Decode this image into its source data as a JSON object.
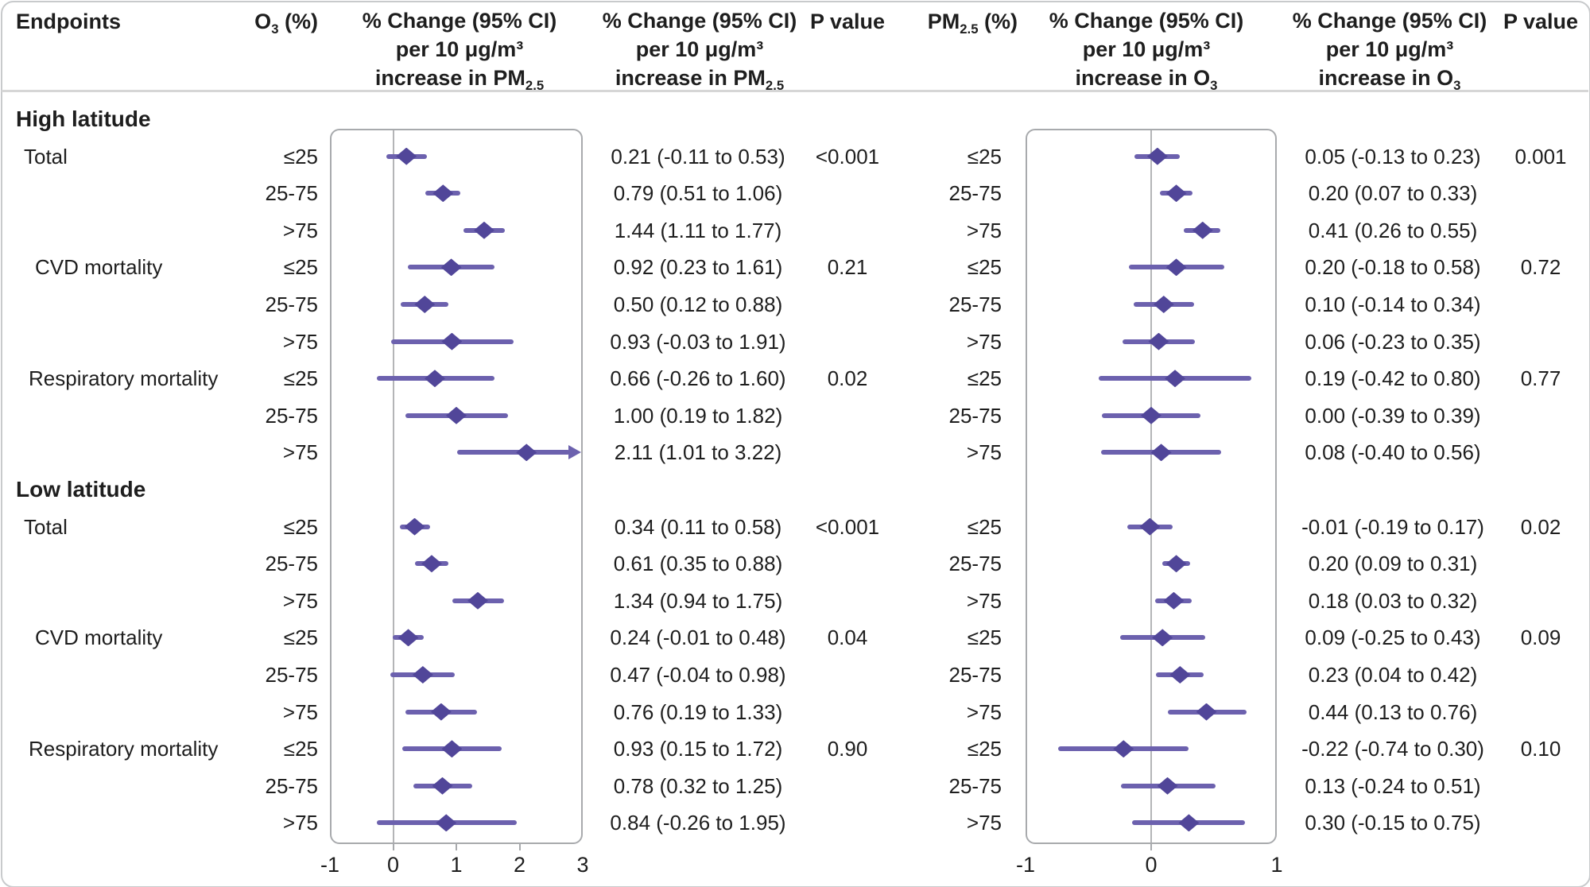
{
  "figure": {
    "header": {
      "endpoints": "Endpoints",
      "o3_pre": "O",
      "o3_sub": "3",
      "o3_post": " (%)",
      "pm_pre": "PM",
      "pm_sub": "2.5",
      "pm_post": " (%)",
      "p_value_left": "P value",
      "p_value_right": "P value",
      "change_line1": "% Change (95% CI)",
      "change_line2": "per 10 μg/m³",
      "inc_pm_pre": "increase in PM",
      "inc_pm_sub": "2.5",
      "inc_o3_pre": "increase in O",
      "inc_o3_sub": "3"
    }
  },
  "chart_data": {
    "type": "forest",
    "panels": [
      {
        "id": "pm25",
        "title": "% Change (95% CI) per 10 ug/m3 increase in PM2.5",
        "xlim": [
          -1,
          3
        ],
        "ticks": [
          -1,
          0,
          1,
          2,
          3
        ]
      },
      {
        "id": "o3",
        "title": "% Change (95% CI) per 10 ug/m3 increase in O3",
        "xlim": [
          -1,
          1
        ],
        "ticks": [
          -1,
          0,
          1
        ]
      }
    ],
    "colors": {
      "diamond": "#514699",
      "ci_line": "#6c61ae",
      "zero_line": "#b4b5b7"
    },
    "sections": [
      {
        "label": "High latitude",
        "rows": [
          {
            "endpoint": "Total",
            "stratum": "≤25",
            "pm25": {
              "est": 0.21,
              "lo": -0.11,
              "hi": 0.53,
              "text": "0.21 (-0.11 to 0.53)",
              "p": "<0.001"
            },
            "o3": {
              "est": 0.05,
              "lo": -0.13,
              "hi": 0.23,
              "text": "0.05 (-0.13 to 0.23)",
              "p": "0.001"
            }
          },
          {
            "endpoint": "",
            "stratum": "25-75",
            "pm25": {
              "est": 0.79,
              "lo": 0.51,
              "hi": 1.06,
              "text": "0.79 (0.51 to 1.06)",
              "p": ""
            },
            "o3": {
              "est": 0.2,
              "lo": 0.07,
              "hi": 0.33,
              "text": "0.20 (0.07 to 0.33)",
              "p": ""
            }
          },
          {
            "endpoint": "",
            "stratum": ">75",
            "pm25": {
              "est": 1.44,
              "lo": 1.11,
              "hi": 1.77,
              "text": "1.44 (1.11 to 1.77)",
              "p": ""
            },
            "o3": {
              "est": 0.41,
              "lo": 0.26,
              "hi": 0.55,
              "text": "0.41 (0.26 to 0.55)",
              "p": ""
            }
          },
          {
            "endpoint": "CVD mortality",
            "stratum": "≤25",
            "pm25": {
              "est": 0.92,
              "lo": 0.23,
              "hi": 1.61,
              "text": "0.92 (0.23 to 1.61)",
              "p": "0.21"
            },
            "o3": {
              "est": 0.2,
              "lo": -0.18,
              "hi": 0.58,
              "text": "0.20 (-0.18 to 0.58)",
              "p": "0.72"
            }
          },
          {
            "endpoint": "",
            "stratum": "25-75",
            "pm25": {
              "est": 0.5,
              "lo": 0.12,
              "hi": 0.88,
              "text": "0.50 (0.12 to 0.88)",
              "p": ""
            },
            "o3": {
              "est": 0.1,
              "lo": -0.14,
              "hi": 0.34,
              "text": "0.10 (-0.14 to 0.34)",
              "p": ""
            }
          },
          {
            "endpoint": "",
            "stratum": ">75",
            "pm25": {
              "est": 0.93,
              "lo": -0.03,
              "hi": 1.91,
              "text": "0.93 (-0.03 to 1.91)",
              "p": ""
            },
            "o3": {
              "est": 0.06,
              "lo": -0.23,
              "hi": 0.35,
              "text": "0.06 (-0.23 to 0.35)",
              "p": ""
            }
          },
          {
            "endpoint": "Respiratory mortality",
            "stratum": "≤25",
            "pm25": {
              "est": 0.66,
              "lo": -0.26,
              "hi": 1.6,
              "text": "0.66 (-0.26 to 1.60)",
              "p": "0.02"
            },
            "o3": {
              "est": 0.19,
              "lo": -0.42,
              "hi": 0.8,
              "text": "0.19 (-0.42 to 0.80)",
              "p": "0.77"
            }
          },
          {
            "endpoint": "",
            "stratum": "25-75",
            "pm25": {
              "est": 1.0,
              "lo": 0.19,
              "hi": 1.82,
              "text": "1.00 (0.19 to 1.82)",
              "p": ""
            },
            "o3": {
              "est": 0.0,
              "lo": -0.39,
              "hi": 0.39,
              "text": "0.00 (-0.39 to 0.39)",
              "p": ""
            }
          },
          {
            "endpoint": "",
            "stratum": ">75",
            "pm25": {
              "est": 2.11,
              "lo": 1.01,
              "hi": 3.22,
              "text": "2.11 (1.01 to 3.22)",
              "p": ""
            },
            "o3": {
              "est": 0.08,
              "lo": -0.4,
              "hi": 0.56,
              "text": "0.08 (-0.40 to 0.56)",
              "p": ""
            }
          }
        ]
      },
      {
        "label": "Low latitude",
        "rows": [
          {
            "endpoint": "Total",
            "stratum": "≤25",
            "pm25": {
              "est": 0.34,
              "lo": 0.11,
              "hi": 0.58,
              "text": "0.34 (0.11 to 0.58)",
              "p": "<0.001"
            },
            "o3": {
              "est": -0.01,
              "lo": -0.19,
              "hi": 0.17,
              "text": "-0.01 (-0.19 to 0.17)",
              "p": "0.02"
            }
          },
          {
            "endpoint": "",
            "stratum": "25-75",
            "pm25": {
              "est": 0.61,
              "lo": 0.35,
              "hi": 0.88,
              "text": "0.61 (0.35 to 0.88)",
              "p": ""
            },
            "o3": {
              "est": 0.2,
              "lo": 0.09,
              "hi": 0.31,
              "text": "0.20 (0.09 to 0.31)",
              "p": ""
            }
          },
          {
            "endpoint": "",
            "stratum": ">75",
            "pm25": {
              "est": 1.34,
              "lo": 0.94,
              "hi": 1.75,
              "text": "1.34 (0.94 to 1.75)",
              "p": ""
            },
            "o3": {
              "est": 0.18,
              "lo": 0.03,
              "hi": 0.32,
              "text": "0.18 (0.03 to 0.32)",
              "p": ""
            }
          },
          {
            "endpoint": "CVD mortality",
            "stratum": "≤25",
            "pm25": {
              "est": 0.24,
              "lo": -0.01,
              "hi": 0.48,
              "text": "0.24 (-0.01 to 0.48)",
              "p": "0.04"
            },
            "o3": {
              "est": 0.09,
              "lo": -0.25,
              "hi": 0.43,
              "text": "0.09 (-0.25 to 0.43)",
              "p": "0.09"
            }
          },
          {
            "endpoint": "",
            "stratum": "25-75",
            "pm25": {
              "est": 0.47,
              "lo": -0.04,
              "hi": 0.98,
              "text": "0.47 (-0.04 to 0.98)",
              "p": ""
            },
            "o3": {
              "est": 0.23,
              "lo": 0.04,
              "hi": 0.42,
              "text": "0.23 (0.04 to 0.42)",
              "p": ""
            }
          },
          {
            "endpoint": "",
            "stratum": ">75",
            "pm25": {
              "est": 0.76,
              "lo": 0.19,
              "hi": 1.33,
              "text": "0.76 (0.19 to 1.33)",
              "p": ""
            },
            "o3": {
              "est": 0.44,
              "lo": 0.13,
              "hi": 0.76,
              "text": "0.44 (0.13 to 0.76)",
              "p": ""
            }
          },
          {
            "endpoint": "Respiratory mortality",
            "stratum": "≤25",
            "pm25": {
              "est": 0.93,
              "lo": 0.15,
              "hi": 1.72,
              "text": "0.93 (0.15 to 1.72)",
              "p": "0.90"
            },
            "o3": {
              "est": -0.22,
              "lo": -0.74,
              "hi": 0.3,
              "text": "-0.22 (-0.74 to 0.30)",
              "p": "0.10"
            }
          },
          {
            "endpoint": "",
            "stratum": "25-75",
            "pm25": {
              "est": 0.78,
              "lo": 0.32,
              "hi": 1.25,
              "text": "0.78 (0.32 to 1.25)",
              "p": ""
            },
            "o3": {
              "est": 0.13,
              "lo": -0.24,
              "hi": 0.51,
              "text": "0.13 (-0.24 to 0.51)",
              "p": ""
            }
          },
          {
            "endpoint": "",
            "stratum": ">75",
            "pm25": {
              "est": 0.84,
              "lo": -0.26,
              "hi": 1.95,
              "text": "0.84 (-0.26 to 1.95)",
              "p": ""
            },
            "o3": {
              "est": 0.3,
              "lo": -0.15,
              "hi": 0.75,
              "text": "0.30 (-0.15 to 0.75)",
              "p": ""
            }
          }
        ]
      }
    ]
  }
}
